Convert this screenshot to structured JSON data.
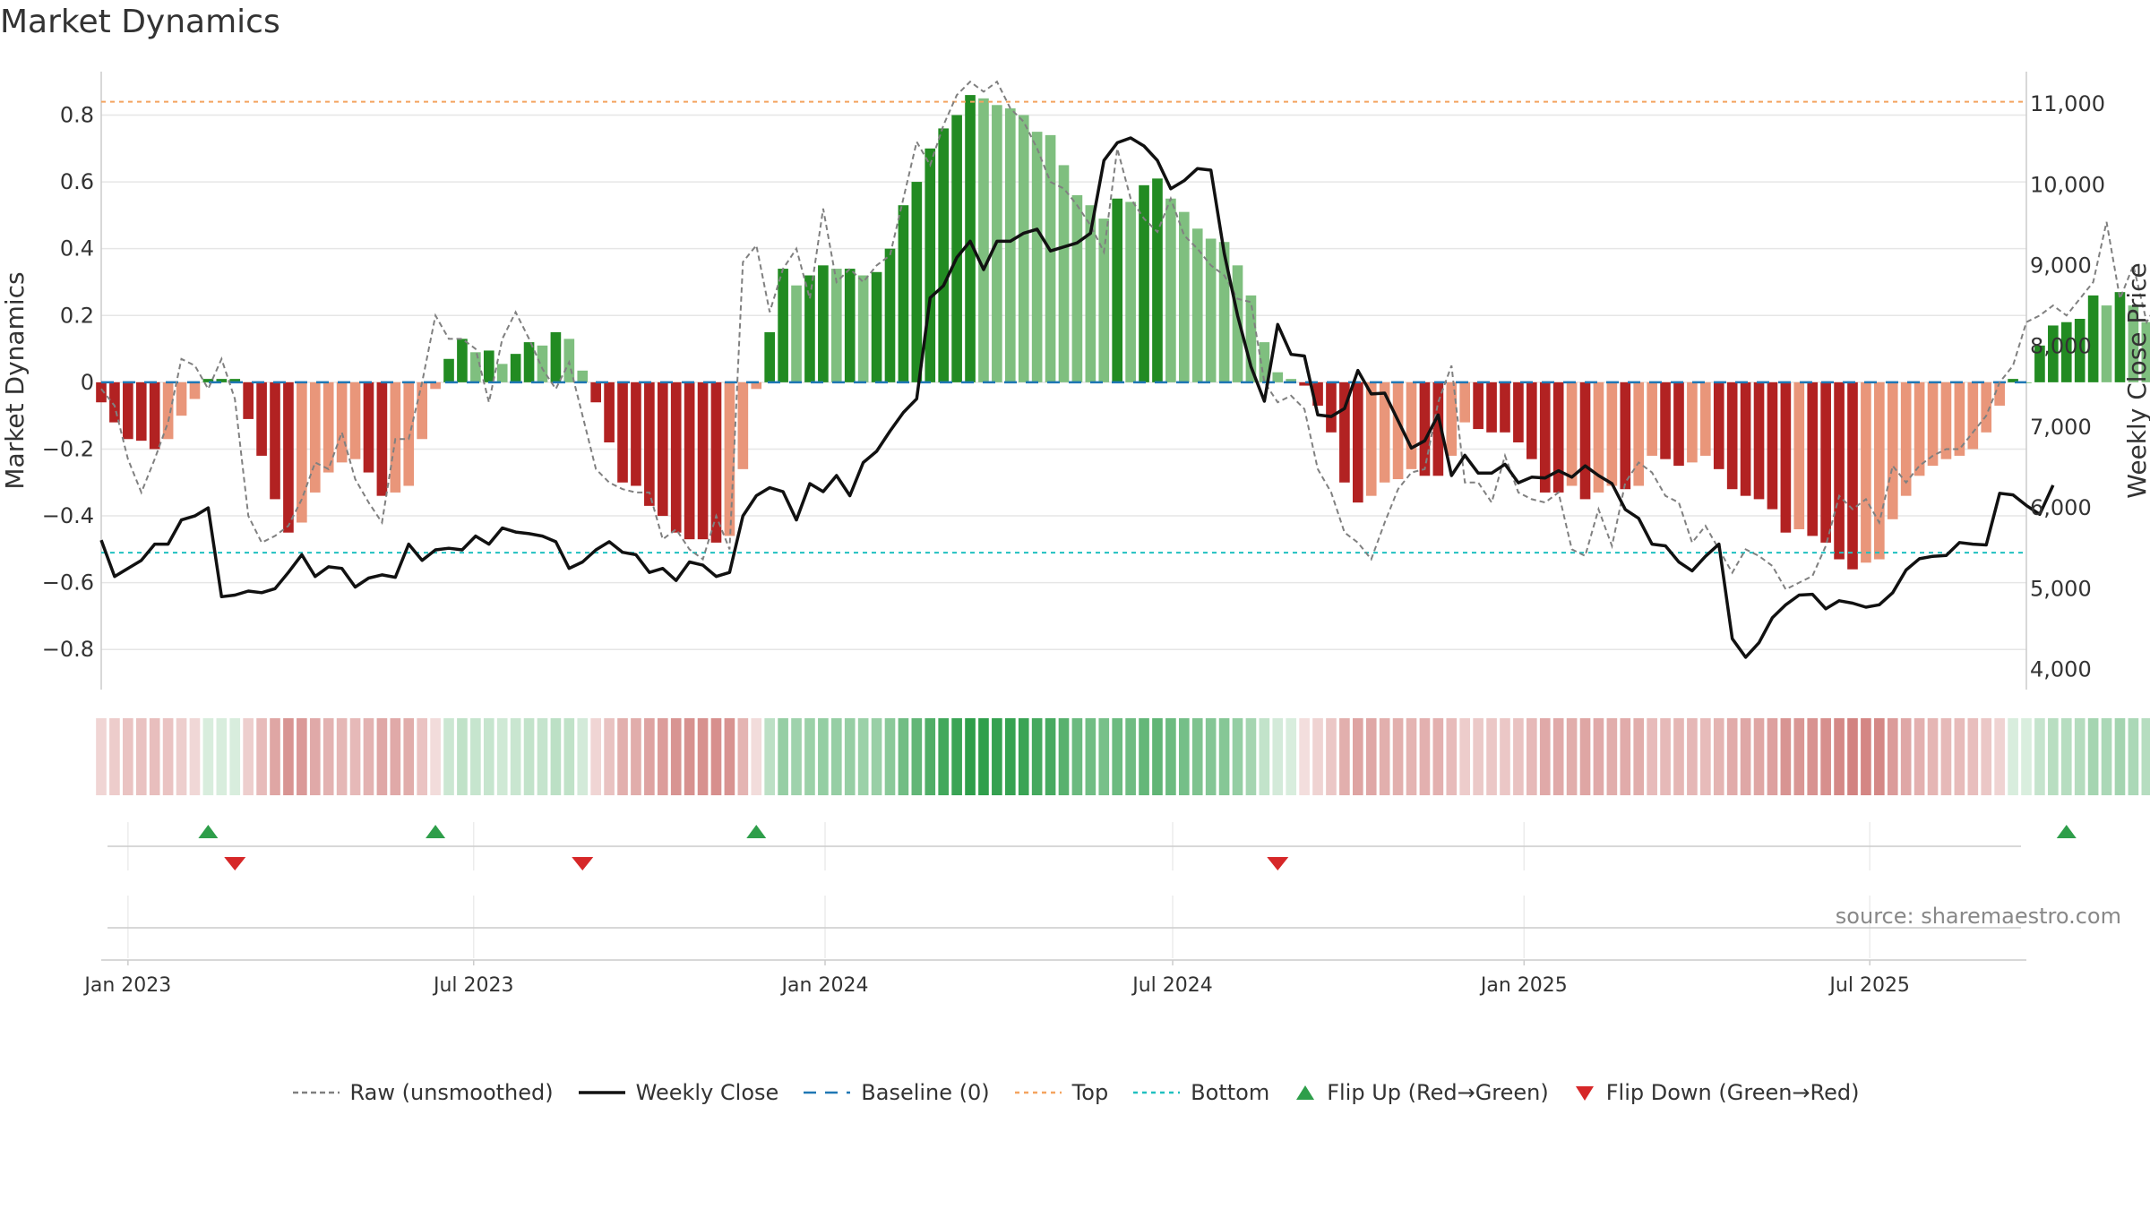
{
  "title": "Market Dynamics",
  "source": "source: sharemaestro.com",
  "chart_data": {
    "type": "bar",
    "left_axis": {
      "label": "Market Dynamics",
      "range": [
        -0.92,
        0.93
      ],
      "ticks": [
        -0.8,
        -0.6,
        -0.4,
        -0.2,
        0,
        0.2,
        0.4,
        0.6,
        0.8
      ],
      "tick_labels": [
        "−0.8",
        "−0.6",
        "−0.4",
        "−0.2",
        "0",
        "0.2",
        "0.4",
        "0.6",
        "0.8"
      ]
    },
    "right_axis": {
      "label": "Weekly Close Price",
      "range": [
        3750,
        11400
      ],
      "ticks": [
        4000,
        5000,
        6000,
        7000,
        8000,
        9000,
        10000,
        11000
      ],
      "tick_labels": [
        "4,000",
        "5,000",
        "6,000",
        "7,000",
        "8,000",
        "9,000",
        "10,000",
        "11,000"
      ]
    },
    "x_axis": {
      "start": "2022-12-18",
      "end": "2025-09-21",
      "ticks": [
        "2023-01-01",
        "2023-07-01",
        "2024-01-01",
        "2024-07-01",
        "2025-01-01",
        "2025-07-01"
      ],
      "tick_labels": [
        "Jan 2023",
        "Jul 2023",
        "Jan 2024",
        "Jul 2024",
        "Jan 2025",
        "Jul 2025"
      ]
    },
    "first_week": "2022-12-18",
    "week_interval_days": 7,
    "grid": true,
    "legend_position": "bottom",
    "series": [
      {
        "name": "Market Dynamics",
        "type": "bar",
        "values": [
          -0.06,
          -0.12,
          -0.17,
          -0.175,
          -0.2,
          -0.17,
          -0.1,
          -0.05,
          0.01,
          0.01,
          0.01,
          -0.11,
          -0.22,
          -0.35,
          -0.45,
          -0.42,
          -0.33,
          -0.27,
          -0.24,
          -0.23,
          -0.27,
          -0.34,
          -0.33,
          -0.31,
          -0.17,
          -0.02,
          0.07,
          0.13,
          0.09,
          0.095,
          0.055,
          0.085,
          0.12,
          0.11,
          0.15,
          0.13,
          0.035,
          -0.06,
          -0.18,
          -0.3,
          -0.31,
          -0.37,
          -0.4,
          -0.45,
          -0.47,
          -0.47,
          -0.48,
          -0.46,
          -0.26,
          -0.02,
          0.15,
          0.34,
          0.29,
          0.32,
          0.35,
          0.34,
          0.34,
          0.32,
          0.33,
          0.4,
          0.53,
          0.6,
          0.7,
          0.76,
          0.8,
          0.86,
          0.85,
          0.83,
          0.82,
          0.8,
          0.75,
          0.74,
          0.65,
          0.56,
          0.53,
          0.49,
          0.55,
          0.54,
          0.59,
          0.61,
          0.55,
          0.51,
          0.46,
          0.43,
          0.42,
          0.35,
          0.26,
          0.12,
          0.03,
          0.01,
          -0.01,
          -0.07,
          -0.15,
          -0.3,
          -0.36,
          -0.34,
          -0.3,
          -0.29,
          -0.26,
          -0.28,
          -0.28,
          -0.22,
          -0.12,
          -0.14,
          -0.15,
          -0.15,
          -0.18,
          -0.23,
          -0.33,
          -0.33,
          -0.31,
          -0.35,
          -0.33,
          -0.31,
          -0.32,
          -0.31,
          -0.22,
          -0.23,
          -0.25,
          -0.24,
          -0.22,
          -0.26,
          -0.32,
          -0.34,
          -0.35,
          -0.38,
          -0.45,
          -0.44,
          -0.46,
          -0.48,
          -0.53,
          -0.56,
          -0.54,
          -0.53,
          -0.41,
          -0.34,
          -0.28,
          -0.25,
          -0.23,
          -0.22,
          -0.2,
          -0.15,
          -0.07,
          0.01,
          0.0,
          0.11,
          0.17,
          0.18,
          0.19,
          0.26,
          0.23,
          0.27,
          0.23,
          0.18
        ],
        "colors": {
          "up_strong": "#228b22",
          "up_weak": "#7fbf7f",
          "down_strong": "#b22222",
          "down_weak": "#e9967a"
        }
      },
      {
        "name": "Raw (unsmoothed)",
        "type": "line",
        "values": [
          -0.02,
          -0.07,
          -0.23,
          -0.33,
          -0.23,
          -0.12,
          0.07,
          0.05,
          -0.02,
          0.07,
          -0.05,
          -0.4,
          -0.48,
          -0.46,
          -0.43,
          -0.35,
          -0.24,
          -0.26,
          -0.15,
          -0.29,
          -0.36,
          -0.42,
          -0.17,
          -0.17,
          0.0,
          0.2,
          0.13,
          0.13,
          0.1,
          -0.06,
          0.13,
          0.21,
          0.13,
          0.04,
          -0.02,
          0.06,
          -0.1,
          -0.26,
          -0.3,
          -0.32,
          -0.33,
          -0.33,
          -0.47,
          -0.44,
          -0.5,
          -0.53,
          -0.4,
          -0.5,
          0.36,
          0.41,
          0.21,
          0.34,
          0.4,
          0.25,
          0.52,
          0.3,
          0.34,
          0.3,
          0.35,
          0.38,
          0.55,
          0.72,
          0.65,
          0.77,
          0.86,
          0.9,
          0.87,
          0.9,
          0.82,
          0.78,
          0.7,
          0.6,
          0.58,
          0.53,
          0.47,
          0.39,
          0.7,
          0.55,
          0.49,
          0.45,
          0.55,
          0.44,
          0.4,
          0.35,
          0.32,
          0.25,
          0.24,
          0.0,
          -0.06,
          -0.04,
          -0.08,
          -0.26,
          -0.33,
          -0.45,
          -0.48,
          -0.53,
          -0.42,
          -0.32,
          -0.27,
          -0.26,
          -0.06,
          0.05,
          -0.3,
          -0.3,
          -0.36,
          -0.22,
          -0.33,
          -0.35,
          -0.36,
          -0.33,
          -0.5,
          -0.52,
          -0.38,
          -0.49,
          -0.3,
          -0.24,
          -0.27,
          -0.34,
          -0.36,
          -0.48,
          -0.43,
          -0.5,
          -0.57,
          -0.5,
          -0.52,
          -0.55,
          -0.62,
          -0.6,
          -0.58,
          -0.49,
          -0.34,
          -0.38,
          -0.35,
          -0.42,
          -0.25,
          -0.3,
          -0.25,
          -0.22,
          -0.2,
          -0.2,
          -0.15,
          -0.1,
          0.0,
          0.05,
          0.18,
          0.2,
          0.23,
          0.2,
          0.25,
          0.3,
          0.48,
          0.25,
          0.35,
          0.18,
          0.25
        ],
        "color": "#808080"
      },
      {
        "name": "Weekly Close",
        "type": "line",
        "axis": "right",
        "values": [
          5600,
          5150,
          5250,
          5350,
          5550,
          5550,
          5850,
          5900,
          6000,
          4900,
          4920,
          4970,
          4950,
          5000,
          5200,
          5420,
          5150,
          5270,
          5250,
          5020,
          5130,
          5170,
          5140,
          5550,
          5350,
          5480,
          5500,
          5480,
          5650,
          5550,
          5750,
          5700,
          5680,
          5650,
          5580,
          5250,
          5330,
          5480,
          5580,
          5450,
          5420,
          5200,
          5250,
          5100,
          5330,
          5290,
          5150,
          5200,
          5900,
          6150,
          6250,
          6200,
          5850,
          6300,
          6200,
          6400,
          6150,
          6560,
          6700,
          6950,
          7180,
          7350,
          8600,
          8750,
          9100,
          9300,
          8950,
          9300,
          9300,
          9400,
          9450,
          9180,
          9230,
          9280,
          9400,
          10300,
          10520,
          10580,
          10480,
          10300,
          9950,
          10050,
          10200,
          10180,
          9150,
          8380,
          7750,
          7320,
          8270,
          7900,
          7880,
          7150,
          7130,
          7230,
          7700,
          7410,
          7420,
          7080,
          6740,
          6830,
          7150,
          6400,
          6650,
          6430,
          6430,
          6540,
          6310,
          6380,
          6370,
          6460,
          6380,
          6520,
          6400,
          6300,
          5980,
          5870,
          5550,
          5530,
          5330,
          5220,
          5400,
          5550,
          4380,
          4150,
          4330,
          4640,
          4800,
          4920,
          4930,
          4750,
          4850,
          4820,
          4770,
          4800,
          4950,
          5230,
          5370,
          5400,
          5410,
          5570,
          5550,
          5540,
          6180,
          6160,
          6030,
          5920,
          6280
        ],
        "color": "#111111"
      },
      {
        "name": "Baseline (0)",
        "type": "hline",
        "value": 0,
        "color": "#1f77b4"
      },
      {
        "name": "Top",
        "type": "hline",
        "value": 0.84,
        "color": "#f4a460"
      },
      {
        "name": "Bottom",
        "type": "hline",
        "value": -0.51,
        "color": "#20c0c0"
      }
    ],
    "regime_strip": {
      "colors": {
        "up": "#2e9e4a",
        "down": "#c0504d"
      }
    },
    "flips": {
      "up_weeks": [
        8,
        25,
        49,
        147
      ],
      "down_weeks": [
        10,
        36,
        88
      ],
      "colors": {
        "up": "#2e9e4a",
        "down": "#d62728"
      }
    },
    "legend": [
      {
        "label": "Raw (unsmoothed)",
        "style": "dashed-line",
        "color": "#808080"
      },
      {
        "label": "Weekly Close",
        "style": "solid-line",
        "color": "#111111"
      },
      {
        "label": "Baseline (0)",
        "style": "dashed-line-long",
        "color": "#1f77b4"
      },
      {
        "label": "Top",
        "style": "dotted-line",
        "color": "#f4a460"
      },
      {
        "label": "Bottom",
        "style": "dotted-line",
        "color": "#20c0c0"
      },
      {
        "label": "Flip Up (Red→Green)",
        "style": "triangle-up",
        "color": "#2e9e4a"
      },
      {
        "label": "Flip Down (Green→Red)",
        "style": "triangle-down",
        "color": "#d62728"
      }
    ]
  }
}
